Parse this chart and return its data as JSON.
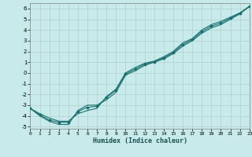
{
  "xlabel": "Humidex (Indice chaleur)",
  "ylabel": "",
  "bg_color": "#c8eaea",
  "grid_color": "#b0d0d0",
  "line_color": "#1a7070",
  "xlim": [
    0,
    23
  ],
  "ylim": [
    -5.2,
    6.5
  ],
  "xticks": [
    0,
    1,
    2,
    3,
    4,
    5,
    6,
    7,
    8,
    9,
    10,
    11,
    12,
    13,
    14,
    15,
    16,
    17,
    18,
    19,
    20,
    21,
    22,
    23
  ],
  "yticks": [
    -5,
    -4,
    -3,
    -2,
    -1,
    0,
    1,
    2,
    3,
    4,
    5,
    6
  ],
  "line1_x": [
    0,
    1,
    2,
    3,
    4,
    5,
    6,
    7,
    8,
    9,
    10,
    11,
    12,
    13,
    14,
    15,
    16,
    17,
    18,
    19,
    20,
    21,
    22,
    23
  ],
  "line1_y": [
    -3.3,
    -4.0,
    -4.5,
    -4.8,
    -4.8,
    -3.5,
    -3.0,
    -3.0,
    -2.5,
    -1.8,
    -0.2,
    0.2,
    0.7,
    1.0,
    1.3,
    1.8,
    2.5,
    3.0,
    3.7,
    4.2,
    4.5,
    5.0,
    5.5,
    6.2
  ],
  "line2_x": [
    0,
    1,
    2,
    3,
    4,
    5,
    6,
    7,
    8,
    9,
    10,
    11,
    12,
    13,
    14,
    15,
    16,
    17,
    18,
    19,
    20,
    21,
    22,
    23
  ],
  "line2_y": [
    -3.3,
    -3.8,
    -4.2,
    -4.5,
    -4.5,
    -3.8,
    -3.5,
    -3.3,
    -2.2,
    -1.5,
    0.0,
    0.5,
    0.9,
    1.1,
    1.5,
    2.0,
    2.8,
    3.2,
    4.0,
    4.5,
    4.8,
    5.2,
    5.6,
    6.2
  ],
  "line3_x": [
    0,
    1,
    2,
    3,
    4,
    5,
    6,
    7,
    8,
    9,
    10,
    11,
    12,
    13,
    14,
    15,
    16,
    17,
    18,
    19,
    20,
    21,
    22,
    23
  ],
  "line3_y": [
    -3.3,
    -3.9,
    -4.4,
    -4.6,
    -4.6,
    -3.6,
    -3.2,
    -3.1,
    -2.3,
    -1.6,
    -0.1,
    0.35,
    0.8,
    1.05,
    1.4,
    1.9,
    2.65,
    3.1,
    3.85,
    4.35,
    4.65,
    5.1,
    5.55,
    6.2
  ]
}
